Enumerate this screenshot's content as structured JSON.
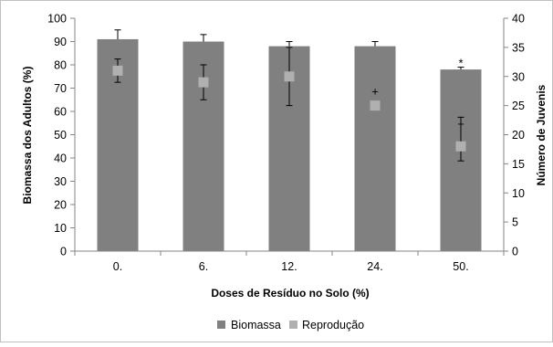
{
  "chart_data": {
    "type": "bar",
    "categories": [
      "0.",
      "6.",
      "12.",
      "24.",
      "50."
    ],
    "xlabel": "Doses de Resíduo no Solo (%)",
    "ylabel": "Biomassa dos Adultos (%)",
    "y2label": "Número de Juvenis",
    "ylim": [
      0,
      100
    ],
    "y2lim": [
      0,
      40
    ],
    "yticks": [
      0,
      10,
      20,
      30,
      40,
      50,
      60,
      70,
      80,
      90,
      100
    ],
    "y2ticks": [
      0,
      5,
      10,
      15,
      20,
      25,
      30,
      35,
      40
    ],
    "grid": false,
    "legend_position": "bottom",
    "series": [
      {
        "name": "Biomassa",
        "kind": "bar",
        "axis": "left",
        "color": "#808080",
        "values": [
          91,
          90,
          88,
          88,
          78
        ],
        "err_upper": [
          4,
          3,
          2,
          2,
          1
        ],
        "err_lower": [
          0,
          0,
          0,
          0,
          0
        ]
      },
      {
        "name": "Reprodução",
        "kind": "marker",
        "axis": "right",
        "color": "#b0b0b0",
        "values": [
          31,
          29,
          30,
          25,
          18
        ],
        "err_upper": [
          2,
          3,
          5,
          0,
          5
        ],
        "err_lower": [
          2,
          3,
          5,
          0,
          2.5
        ]
      }
    ],
    "annotations": [
      {
        "category": "24.",
        "text": "+",
        "axis": "right",
        "value": 27.5
      },
      {
        "category": "50.",
        "text": "*",
        "axis": "left",
        "value": 81
      },
      {
        "category": "50.",
        "text": "+",
        "axis": "right",
        "value": 22
      }
    ]
  }
}
